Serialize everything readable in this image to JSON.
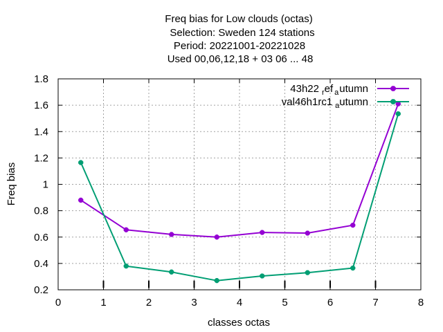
{
  "chart_data": {
    "type": "line",
    "title_lines": [
      "Freq bias  for Low clouds (octas)",
      "Selection: Sweden    124 stations",
      "Period: 20221001-20221028",
      "Used  00,06,12,18  + 03 06 ... 48"
    ],
    "xlabel": "classes octas",
    "ylabel": "Freq bias",
    "xlim": [
      0,
      8
    ],
    "ylim": [
      0.2,
      1.8
    ],
    "xticks": [
      0,
      1,
      2,
      3,
      4,
      5,
      6,
      7,
      8
    ],
    "yticks": [
      0.2,
      0.4,
      0.6,
      0.8,
      1,
      1.2,
      1.4,
      1.6,
      1.8
    ],
    "xtick_labels": [
      "0",
      "1",
      "2",
      "3",
      "4",
      "5",
      "6",
      "7",
      "8"
    ],
    "ytick_labels": [
      "0.2",
      "0.4",
      "0.6",
      "0.8",
      "1",
      "1.2",
      "1.4",
      "1.6",
      "1.8"
    ],
    "grid": true,
    "legend_position": "top-right",
    "reference_ticks": [
      1,
      2,
      3,
      4,
      5,
      6,
      7
    ],
    "series": [
      {
        "legend_main_1": "43h22",
        "legend_sub_1": "r",
        "legend_main_2": "ef",
        "legend_sub_2": "a",
        "legend_main_3": "utumn",
        "color": "#9400d3",
        "x": [
          0.5,
          1.5,
          2.5,
          3.5,
          4.5,
          5.5,
          6.5,
          7.5
        ],
        "values": [
          0.88,
          0.655,
          0.62,
          0.6,
          0.635,
          0.63,
          0.69,
          1.61
        ]
      },
      {
        "legend_main_1": "val46h1rc1",
        "legend_sub_1": "a",
        "legend_main_2": "utumn",
        "color": "#009e73",
        "x": [
          0.5,
          1.5,
          2.5,
          3.5,
          4.5,
          5.5,
          6.5,
          7.5
        ],
        "values": [
          1.165,
          0.38,
          0.335,
          0.27,
          0.305,
          0.33,
          0.365,
          1.535
        ]
      }
    ]
  }
}
